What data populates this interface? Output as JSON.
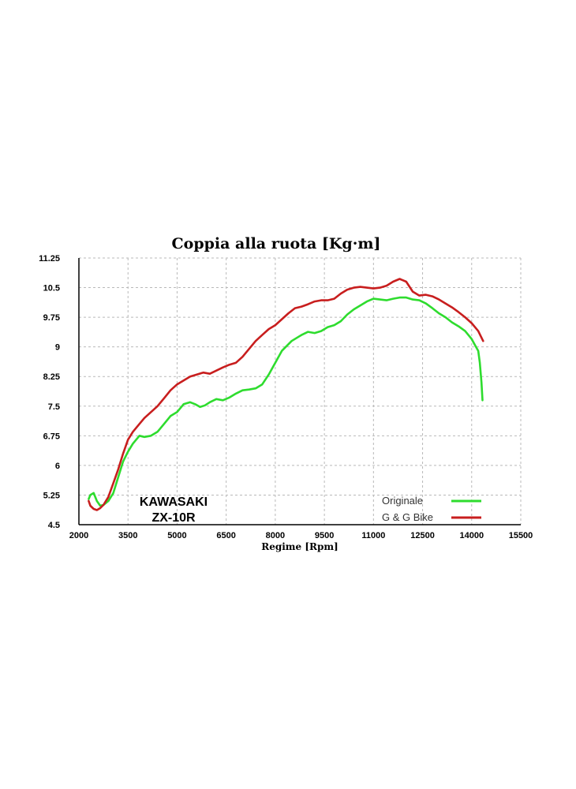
{
  "chart_data": {
    "type": "line",
    "title": "Coppia alla ruota [Kg·m]",
    "xlabel": "Regime [Rpm]",
    "ylabel": "",
    "xlim": [
      2000,
      15500
    ],
    "ylim": [
      4.5,
      11.25
    ],
    "x_ticks": [
      "2000",
      "3500",
      "5000",
      "6500",
      "8000",
      "9500",
      "11000",
      "12500",
      "14000",
      "15500"
    ],
    "y_ticks": [
      "11.25",
      "10.5",
      "9.75",
      "9",
      "8.25",
      "7.5",
      "6.75",
      "6",
      "5.25",
      "4.5"
    ],
    "grid": true,
    "legend_placement": "bottom-right",
    "annotation": {
      "line1": "KAWASAKI",
      "line2": "ZX-10R"
    },
    "series": [
      {
        "name": "Originale",
        "color": "#2edc2e",
        "points": [
          [
            2300,
            5.15
          ],
          [
            2350,
            5.25
          ],
          [
            2450,
            5.3
          ],
          [
            2550,
            5.1
          ],
          [
            2650,
            4.98
          ],
          [
            2750,
            5.0
          ],
          [
            2900,
            5.1
          ],
          [
            3050,
            5.3
          ],
          [
            3200,
            5.7
          ],
          [
            3350,
            6.1
          ],
          [
            3500,
            6.35
          ],
          [
            3650,
            6.55
          ],
          [
            3850,
            6.75
          ],
          [
            4000,
            6.72
          ],
          [
            4200,
            6.75
          ],
          [
            4400,
            6.85
          ],
          [
            4600,
            7.05
          ],
          [
            4800,
            7.25
          ],
          [
            5000,
            7.35
          ],
          [
            5200,
            7.55
          ],
          [
            5400,
            7.6
          ],
          [
            5550,
            7.55
          ],
          [
            5700,
            7.48
          ],
          [
            5850,
            7.52
          ],
          [
            6000,
            7.6
          ],
          [
            6200,
            7.68
          ],
          [
            6400,
            7.65
          ],
          [
            6600,
            7.72
          ],
          [
            6800,
            7.82
          ],
          [
            7000,
            7.9
          ],
          [
            7200,
            7.92
          ],
          [
            7400,
            7.95
          ],
          [
            7600,
            8.05
          ],
          [
            7800,
            8.3
          ],
          [
            8000,
            8.6
          ],
          [
            8200,
            8.9
          ],
          [
            8500,
            9.15
          ],
          [
            8800,
            9.3
          ],
          [
            9000,
            9.38
          ],
          [
            9200,
            9.35
          ],
          [
            9400,
            9.4
          ],
          [
            9600,
            9.5
          ],
          [
            9800,
            9.55
          ],
          [
            10000,
            9.65
          ],
          [
            10200,
            9.82
          ],
          [
            10400,
            9.95
          ],
          [
            10600,
            10.05
          ],
          [
            10800,
            10.15
          ],
          [
            11000,
            10.22
          ],
          [
            11200,
            10.2
          ],
          [
            11400,
            10.18
          ],
          [
            11600,
            10.22
          ],
          [
            11800,
            10.25
          ],
          [
            12000,
            10.25
          ],
          [
            12200,
            10.2
          ],
          [
            12400,
            10.18
          ],
          [
            12600,
            10.1
          ],
          [
            12800,
            9.98
          ],
          [
            13000,
            9.85
          ],
          [
            13200,
            9.75
          ],
          [
            13400,
            9.62
          ],
          [
            13600,
            9.52
          ],
          [
            13800,
            9.4
          ],
          [
            14000,
            9.2
          ],
          [
            14100,
            9.05
          ],
          [
            14200,
            8.9
          ],
          [
            14250,
            8.6
          ],
          [
            14300,
            8.1
          ],
          [
            14330,
            7.65
          ]
        ]
      },
      {
        "name": "G & G Bike",
        "color": "#c81e1e",
        "points": [
          [
            2300,
            5.1
          ],
          [
            2350,
            4.98
          ],
          [
            2450,
            4.9
          ],
          [
            2550,
            4.87
          ],
          [
            2650,
            4.92
          ],
          [
            2750,
            5.0
          ],
          [
            2900,
            5.2
          ],
          [
            3050,
            5.55
          ],
          [
            3200,
            5.9
          ],
          [
            3350,
            6.3
          ],
          [
            3500,
            6.65
          ],
          [
            3650,
            6.85
          ],
          [
            3850,
            7.05
          ],
          [
            4000,
            7.2
          ],
          [
            4200,
            7.35
          ],
          [
            4400,
            7.5
          ],
          [
            4600,
            7.7
          ],
          [
            4800,
            7.9
          ],
          [
            5000,
            8.05
          ],
          [
            5200,
            8.15
          ],
          [
            5400,
            8.25
          ],
          [
            5600,
            8.3
          ],
          [
            5800,
            8.35
          ],
          [
            6000,
            8.32
          ],
          [
            6200,
            8.4
          ],
          [
            6400,
            8.48
          ],
          [
            6600,
            8.55
          ],
          [
            6800,
            8.6
          ],
          [
            7000,
            8.75
          ],
          [
            7200,
            8.95
          ],
          [
            7400,
            9.15
          ],
          [
            7600,
            9.3
          ],
          [
            7800,
            9.45
          ],
          [
            8000,
            9.55
          ],
          [
            8200,
            9.7
          ],
          [
            8400,
            9.85
          ],
          [
            8600,
            9.98
          ],
          [
            8800,
            10.02
          ],
          [
            9000,
            10.08
          ],
          [
            9200,
            10.15
          ],
          [
            9400,
            10.18
          ],
          [
            9600,
            10.18
          ],
          [
            9800,
            10.22
          ],
          [
            10000,
            10.35
          ],
          [
            10200,
            10.45
          ],
          [
            10400,
            10.5
          ],
          [
            10600,
            10.52
          ],
          [
            10800,
            10.5
          ],
          [
            11000,
            10.48
          ],
          [
            11200,
            10.5
          ],
          [
            11400,
            10.55
          ],
          [
            11600,
            10.65
          ],
          [
            11800,
            10.72
          ],
          [
            12000,
            10.65
          ],
          [
            12200,
            10.4
          ],
          [
            12400,
            10.3
          ],
          [
            12600,
            10.32
          ],
          [
            12800,
            10.28
          ],
          [
            13000,
            10.2
          ],
          [
            13200,
            10.1
          ],
          [
            13400,
            10.0
          ],
          [
            13600,
            9.88
          ],
          [
            13800,
            9.75
          ],
          [
            14000,
            9.6
          ],
          [
            14200,
            9.4
          ],
          [
            14350,
            9.15
          ]
        ]
      }
    ]
  }
}
